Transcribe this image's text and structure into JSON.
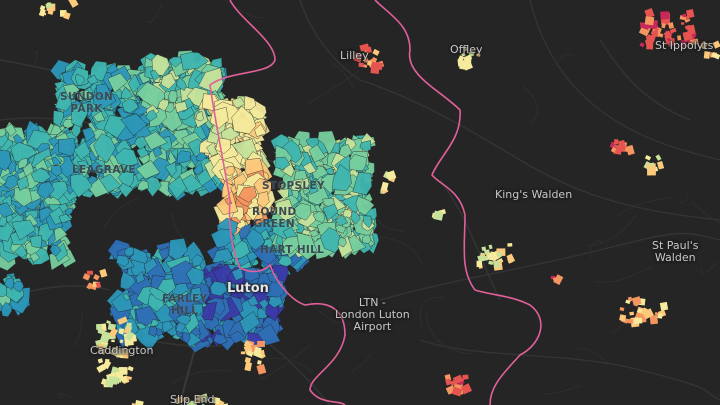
{
  "map": {
    "places": {
      "lilley": "Lilley",
      "offley": "Offley",
      "ippollitts": "St Ippolyts",
      "sundon_park": "SUNDON\nPARK",
      "leagrave": "LEAGRAVE",
      "stopsley": "STOPSLEY",
      "round_green": "ROUND\nGREEN",
      "hart_hill": "HART HILL",
      "kings_walden": "King's Walden",
      "st_pauls_walden": "St Paul's\nWalden",
      "luton": "Luton",
      "farley_hill": "FARLEY\nHILL",
      "airport": "LTN -\nLondon Luton\nAirport",
      "caddington": "Caddington",
      "slip_end": "Slip End"
    },
    "colors": {
      "background": "#252525",
      "boundary": "#e0609a",
      "ramp": [
        "#3b3aa8",
        "#2f6fb6",
        "#2d97b9",
        "#3fb6b0",
        "#77cf9f",
        "#c7e39b",
        "#f6eb9c",
        "#fdc97b",
        "#f59560",
        "#e5544f",
        "#c8285a"
      ]
    }
  }
}
